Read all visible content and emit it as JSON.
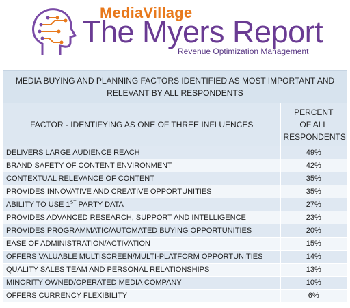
{
  "logo": {
    "brand_small": "MediaVillage",
    "brand_big": "The Myers Report",
    "tagline": "Revenue Optimization Management"
  },
  "table": {
    "title": "MEDIA BUYING AND PLANNING FACTORS IDENTIFIED AS MOST IMPORTANT AND RELEVANT BY ALL RESPONDENTS",
    "col_factor": "FACTOR - IDENTIFYING AS ONE OF THREE INFLUENCES",
    "col_pct_line1": "PERCENT",
    "col_pct_line2": "OF ALL",
    "col_pct_line3": "RESPONDENTS",
    "row_6_pre": "ABILITY TO USE 1",
    "row_6_sup": "ST",
    "row_6_post": " PARTY DATA"
  },
  "chart_data": {
    "type": "table",
    "title": "MEDIA BUYING AND PLANNING FACTORS IDENTIFIED AS MOST IMPORTANT AND RELEVANT BY ALL RESPONDENTS",
    "columns": [
      "FACTOR - IDENTIFYING AS ONE OF THREE INFLUENCES",
      "PERCENT OF ALL RESPONDENTS"
    ],
    "rows": [
      {
        "factor": "DELIVERS LARGE AUDIENCE REACH",
        "percent": "49%"
      },
      {
        "factor": "BRAND SAFETY OF CONTENT ENVIRONMENT",
        "percent": "42%"
      },
      {
        "factor": "CONTEXTUAL RELEVANCE OF CONTENT",
        "percent": "35%"
      },
      {
        "factor": "PROVIDES INNOVATIVE AND CREATIVE OPPORTUNITIES",
        "percent": "35%"
      },
      {
        "factor": "ABILITY TO USE 1ST PARTY DATA",
        "percent": "27%"
      },
      {
        "factor": "PROVIDES ADVANCED RESEARCH, SUPPORT AND INTELLIGENCE",
        "percent": "23%"
      },
      {
        "factor": "PROVIDES PROGRAMMATIC/AUTOMATED BUYING OPPORTUNITIES",
        "percent": "20%"
      },
      {
        "factor": "EASE OF ADMINISTRATION/ACTIVATION",
        "percent": "15%"
      },
      {
        "factor": "OFFERS VALUABLE MULTISCREEN/MULTI-PLATFORM OPPORTUNITIES",
        "percent": "14%"
      },
      {
        "factor": "QUALITY SALES TEAM AND PERSONAL RELATIONSHIPS",
        "percent": "13%"
      },
      {
        "factor": "MINORITY OWNED/OPERATED MEDIA COMPANY",
        "percent": "10%"
      },
      {
        "factor": "OFFERS CURRENCY FLEXIBILITY",
        "percent": "6%"
      }
    ]
  },
  "colors": {
    "brand_orange": "#e8791c",
    "brand_purple": "#6a3b93",
    "header_fill": "#d7e3ee",
    "row_fill_dark": "#dfe8f2",
    "row_fill_light": "#f2f6fa"
  }
}
